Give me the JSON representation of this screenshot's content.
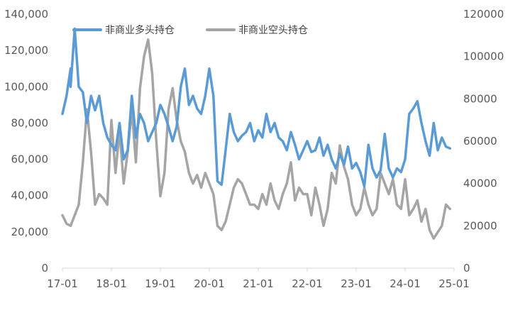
{
  "chart_data": {
    "type": "line",
    "title": "",
    "x_tick_labels": [
      "17-01",
      "18-01",
      "19-01",
      "20-01",
      "21-01",
      "22-01",
      "23-01",
      "24-01",
      "25-01"
    ],
    "xlim": [
      "2017-01",
      "2025-01"
    ],
    "y_left": {
      "ylim": [
        0,
        140000
      ],
      "tick_labels": [
        "0",
        "20,000",
        "40,000",
        "60,000",
        "80,000",
        "100,000",
        "120,000",
        "140,000"
      ]
    },
    "y_right": {
      "ylim": [
        0,
        120000
      ],
      "tick_labels": [
        "0",
        "20000",
        "40000",
        "60000",
        "80000",
        "100000",
        "120000"
      ]
    },
    "legend_position": "top",
    "grid": false,
    "series": [
      {
        "name": "非商业多头持仓",
        "axis": "left",
        "color": "#5b9bd5",
        "points": [
          [
            "2017-01",
            85000
          ],
          [
            "2017-02",
            95000
          ],
          [
            "2017-03",
            110000
          ],
          [
            "2017-03",
            100000
          ],
          [
            "2017-04",
            132000
          ],
          [
            "2017-05",
            100000
          ],
          [
            "2017-06",
            97000
          ],
          [
            "2017-07",
            80000
          ],
          [
            "2017-08",
            95000
          ],
          [
            "2017-09",
            87000
          ],
          [
            "2017-10",
            95000
          ],
          [
            "2017-11",
            80000
          ],
          [
            "2017-12",
            72000
          ],
          [
            "2018-01",
            68000
          ],
          [
            "2018-02",
            65000
          ],
          [
            "2018-03",
            80000
          ],
          [
            "2018-04",
            60000
          ],
          [
            "2018-05",
            65000
          ],
          [
            "2018-06",
            95000
          ],
          [
            "2018-07",
            72000
          ],
          [
            "2018-08",
            85000
          ],
          [
            "2018-09",
            80000
          ],
          [
            "2018-10",
            70000
          ],
          [
            "2018-11",
            75000
          ],
          [
            "2018-12",
            80000
          ],
          [
            "2019-01",
            90000
          ],
          [
            "2019-02",
            85000
          ],
          [
            "2019-03",
            78000
          ],
          [
            "2019-04",
            70000
          ],
          [
            "2019-05",
            78000
          ],
          [
            "2019-06",
            100000
          ],
          [
            "2019-07",
            110000
          ],
          [
            "2019-08",
            90000
          ],
          [
            "2019-09",
            95000
          ],
          [
            "2019-10",
            88000
          ],
          [
            "2019-11",
            85000
          ],
          [
            "2019-12",
            95000
          ],
          [
            "2020-01",
            110000
          ],
          [
            "2020-02",
            95000
          ],
          [
            "2020-03",
            48000
          ],
          [
            "2020-04",
            46000
          ],
          [
            "2020-05",
            65000
          ],
          [
            "2020-06",
            85000
          ],
          [
            "2020-07",
            75000
          ],
          [
            "2020-08",
            70000
          ],
          [
            "2020-09",
            73000
          ],
          [
            "2020-10",
            75000
          ],
          [
            "2020-11",
            80000
          ],
          [
            "2020-12",
            70000
          ],
          [
            "2021-01",
            76000
          ],
          [
            "2021-02",
            72000
          ],
          [
            "2021-03",
            85000
          ],
          [
            "2021-04",
            75000
          ],
          [
            "2021-05",
            80000
          ],
          [
            "2021-06",
            72000
          ],
          [
            "2021-07",
            70000
          ],
          [
            "2021-08",
            65000
          ],
          [
            "2021-09",
            75000
          ],
          [
            "2021-10",
            68000
          ],
          [
            "2021-11",
            60000
          ],
          [
            "2021-12",
            65000
          ],
          [
            "2022-01",
            70000
          ],
          [
            "2022-02",
            64000
          ],
          [
            "2022-03",
            65000
          ],
          [
            "2022-04",
            72000
          ],
          [
            "2022-05",
            62000
          ],
          [
            "2022-06",
            68000
          ],
          [
            "2022-07",
            60000
          ],
          [
            "2022-08",
            55000
          ],
          [
            "2022-09",
            63000
          ],
          [
            "2022-10",
            57000
          ],
          [
            "2022-11",
            67000
          ],
          [
            "2022-12",
            55000
          ],
          [
            "2023-01",
            58000
          ],
          [
            "2023-02",
            53000
          ],
          [
            "2023-03",
            45000
          ],
          [
            "2023-04",
            68000
          ],
          [
            "2023-05",
            55000
          ],
          [
            "2023-06",
            50000
          ],
          [
            "2023-07",
            54000
          ],
          [
            "2023-08",
            74000
          ],
          [
            "2023-09",
            55000
          ],
          [
            "2023-10",
            50000
          ],
          [
            "2023-11",
            55000
          ],
          [
            "2023-12",
            53000
          ],
          [
            "2024-01",
            60000
          ],
          [
            "2024-02",
            85000
          ],
          [
            "2024-03",
            88000
          ],
          [
            "2024-04",
            92000
          ],
          [
            "2024-05",
            80000
          ],
          [
            "2024-06",
            70000
          ],
          [
            "2024-07",
            62000
          ],
          [
            "2024-08",
            80000
          ],
          [
            "2024-09",
            65000
          ],
          [
            "2024-10",
            72000
          ],
          [
            "2024-11",
            67000
          ],
          [
            "2024-12",
            66000
          ]
        ]
      },
      {
        "name": "非商业空头持仓",
        "axis": "right",
        "color": "#a5a5a5",
        "points": [
          [
            "2017-01",
            25000
          ],
          [
            "2017-02",
            21000
          ],
          [
            "2017-03",
            20000
          ],
          [
            "2017-04",
            25000
          ],
          [
            "2017-05",
            30000
          ],
          [
            "2017-06",
            50000
          ],
          [
            "2017-07",
            75000
          ],
          [
            "2017-08",
            55000
          ],
          [
            "2017-09",
            30000
          ],
          [
            "2017-10",
            35000
          ],
          [
            "2017-11",
            33000
          ],
          [
            "2017-12",
            30000
          ],
          [
            "2018-01",
            70000
          ],
          [
            "2018-02",
            45000
          ],
          [
            "2018-03",
            65000
          ],
          [
            "2018-04",
            40000
          ],
          [
            "2018-05",
            55000
          ],
          [
            "2018-06",
            75000
          ],
          [
            "2018-07",
            50000
          ],
          [
            "2018-08",
            85000
          ],
          [
            "2018-09",
            100000
          ],
          [
            "2018-10",
            108000
          ],
          [
            "2018-11",
            92000
          ],
          [
            "2018-12",
            60000
          ],
          [
            "2019-01",
            34000
          ],
          [
            "2019-02",
            45000
          ],
          [
            "2019-03",
            75000
          ],
          [
            "2019-04",
            85000
          ],
          [
            "2019-05",
            70000
          ],
          [
            "2019-06",
            60000
          ],
          [
            "2019-07",
            55000
          ],
          [
            "2019-08",
            45000
          ],
          [
            "2019-09",
            40000
          ],
          [
            "2019-10",
            44000
          ],
          [
            "2019-11",
            38000
          ],
          [
            "2019-12",
            45000
          ],
          [
            "2020-01",
            40000
          ],
          [
            "2020-02",
            35000
          ],
          [
            "2020-03",
            20000
          ],
          [
            "2020-04",
            18000
          ],
          [
            "2020-05",
            22000
          ],
          [
            "2020-06",
            30000
          ],
          [
            "2020-07",
            38000
          ],
          [
            "2020-08",
            42000
          ],
          [
            "2020-09",
            40000
          ],
          [
            "2020-10",
            35000
          ],
          [
            "2020-11",
            30000
          ],
          [
            "2020-12",
            30000
          ],
          [
            "2021-01",
            28000
          ],
          [
            "2021-02",
            35000
          ],
          [
            "2021-03",
            30000
          ],
          [
            "2021-04",
            40000
          ],
          [
            "2021-05",
            32000
          ],
          [
            "2021-06",
            28000
          ],
          [
            "2021-07",
            35000
          ],
          [
            "2021-08",
            40000
          ],
          [
            "2021-09",
            50000
          ],
          [
            "2021-10",
            32000
          ],
          [
            "2021-11",
            38000
          ],
          [
            "2021-12",
            35000
          ],
          [
            "2022-01",
            35000
          ],
          [
            "2022-02",
            25000
          ],
          [
            "2022-03",
            38000
          ],
          [
            "2022-04",
            30000
          ],
          [
            "2022-05",
            20000
          ],
          [
            "2022-06",
            28000
          ],
          [
            "2022-07",
            45000
          ],
          [
            "2022-08",
            40000
          ],
          [
            "2022-09",
            58000
          ],
          [
            "2022-10",
            48000
          ],
          [
            "2022-11",
            42000
          ],
          [
            "2022-12",
            30000
          ],
          [
            "2023-01",
            25000
          ],
          [
            "2023-02",
            28000
          ],
          [
            "2023-03",
            38000
          ],
          [
            "2023-04",
            30000
          ],
          [
            "2023-05",
            25000
          ],
          [
            "2023-06",
            28000
          ],
          [
            "2023-07",
            45000
          ],
          [
            "2023-08",
            40000
          ],
          [
            "2023-09",
            35000
          ],
          [
            "2023-10",
            42000
          ],
          [
            "2023-11",
            30000
          ],
          [
            "2023-12",
            28000
          ],
          [
            "2024-01",
            42000
          ],
          [
            "2024-02",
            25000
          ],
          [
            "2024-03",
            28000
          ],
          [
            "2024-04",
            32000
          ],
          [
            "2024-05",
            22000
          ],
          [
            "2024-06",
            28000
          ],
          [
            "2024-07",
            18000
          ],
          [
            "2024-08",
            14000
          ],
          [
            "2024-09",
            17000
          ],
          [
            "2024-10",
            20000
          ],
          [
            "2024-11",
            30000
          ],
          [
            "2024-12",
            28000
          ]
        ]
      }
    ]
  }
}
